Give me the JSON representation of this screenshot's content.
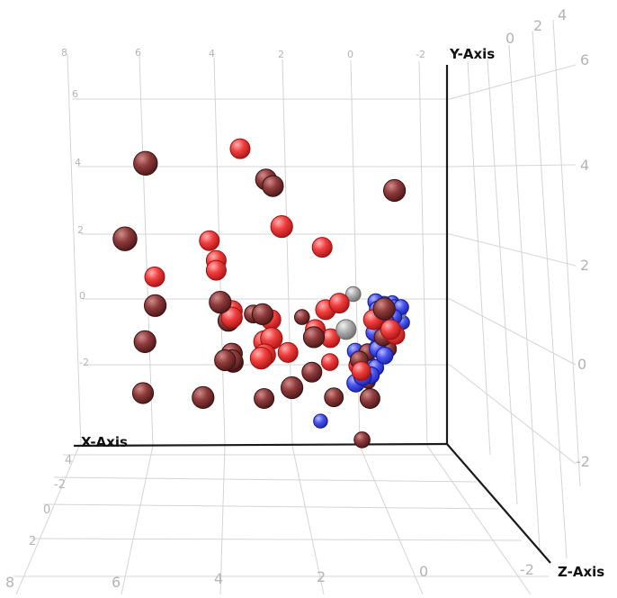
{
  "chart_data": {
    "type": "scatter",
    "projection": "3d",
    "axis_titles": {
      "x": "X-Axis",
      "y": "Y-Axis",
      "z": "Z-Axis"
    },
    "ticks": {
      "x_back": [
        "8",
        "6",
        "4",
        "2",
        "0",
        "-2"
      ],
      "x_front": [
        "8",
        "6",
        "4",
        "2",
        "0",
        "-2"
      ],
      "y_left": [
        "6",
        "4",
        "2",
        "0",
        "-2"
      ],
      "y_right": [
        "6",
        "4",
        "2",
        "0",
        "-2"
      ],
      "z_side": [
        "4",
        "2",
        "0",
        "-2"
      ],
      "z_top": [
        "4",
        "2",
        "0"
      ]
    },
    "colors": {
      "brown": "#8f3b3b",
      "red": "#f03e3e",
      "blue": "#4a55f0",
      "gray": "#b0b0b0"
    },
    "series": [
      {
        "color": "brown",
        "points": [
          [
            6.9,
            3.5,
            2.0
          ],
          [
            7.5,
            1.2,
            2.0
          ],
          [
            2.9,
            3.5,
            0.5
          ],
          [
            2.7,
            3.3,
            0.5
          ],
          [
            6.3,
            -0.5,
            1.0
          ],
          [
            6.6,
            -1.6,
            1.0
          ],
          [
            4.4,
            -0.4,
            1.0
          ],
          [
            4.0,
            -0.8,
            0.5
          ],
          [
            2.8,
            -0.1,
            -1.0
          ],
          [
            3.0,
            -0.6,
            0.5
          ],
          [
            1.5,
            -1.3,
            0.5
          ],
          [
            3.9,
            -1.8,
            0.5
          ],
          [
            3.7,
            -1.9,
            0.0
          ],
          [
            3.9,
            -2.0,
            0.5
          ],
          [
            4.1,
            -2.0,
            0.5
          ],
          [
            1.4,
            -2.2,
            0.0
          ],
          [
            -0.7,
            3.0,
            1.0
          ],
          [
            -0.3,
            -1.5,
            -1.0
          ],
          [
            -0.4,
            -0.6,
            1.0
          ],
          [
            -0.7,
            -1.1,
            -1.5
          ],
          [
            -1.0,
            -0.8,
            -1.0
          ],
          [
            -1.3,
            -1.0,
            -1.5
          ],
          [
            0.9,
            0.3,
            -2.5
          ],
          [
            -0.3,
            -3.0,
            0.0
          ],
          [
            -1.2,
            -1.5,
            -3.0
          ],
          [
            6.5,
            -3.0,
            0.5
          ],
          [
            4.9,
            -3.3,
            1.0
          ],
          [
            2.3,
            -3.0,
            1.0
          ],
          [
            0.6,
            -2.8,
            -0.5
          ],
          [
            2.8,
            -3.0,
            0.0
          ],
          [
            -0.7,
            -3.6,
            -2.0
          ]
        ]
      },
      {
        "color": "red",
        "points": [
          [
            3.5,
            4.6,
            0.0
          ],
          [
            4.4,
            1.8,
            0.0
          ],
          [
            2.6,
            1.9,
            1.0
          ],
          [
            4.2,
            1.2,
            0.0
          ],
          [
            4.2,
            0.9,
            0.0
          ],
          [
            1.1,
            1.6,
            0.0
          ],
          [
            6.0,
            0.7,
            0.0
          ],
          [
            3.9,
            -0.5,
            0.5
          ],
          [
            3.9,
            -0.7,
            0.5
          ],
          [
            2.6,
            -0.6,
            0.0
          ],
          [
            1.0,
            -0.3,
            0.0
          ],
          [
            0.6,
            -0.1,
            0.0
          ],
          [
            1.3,
            -0.9,
            0.0
          ],
          [
            0.7,
            -1.0,
            -0.5
          ],
          [
            0.4,
            -1.4,
            -1.5
          ],
          [
            -0.4,
            -0.6,
            0.0
          ],
          [
            -0.9,
            -0.9,
            0.0
          ],
          [
            -0.4,
            -1.5,
            -1.5
          ],
          [
            -1.2,
            -0.9,
            -0.5
          ],
          [
            -1.5,
            0.0,
            -2.5
          ],
          [
            3.1,
            -1.6,
            1.0
          ],
          [
            2.9,
            -1.5,
            1.0
          ],
          [
            3.1,
            -2.0,
            1.0
          ],
          [
            3.2,
            -2.1,
            1.0
          ],
          [
            2.1,
            -1.6,
            0.0
          ],
          [
            -0.2,
            -2.0,
            -0.5
          ]
        ]
      },
      {
        "color": "blue",
        "points": [
          [
            0.2,
            -2.7,
            -3.0
          ],
          [
            -0.2,
            -2.2,
            -1.0
          ],
          [
            -0.4,
            -2.0,
            -1.0
          ],
          [
            -0.8,
            -1.8,
            -1.5
          ],
          [
            -0.5,
            -0.9,
            -2.0
          ],
          [
            -0.9,
            -1.3,
            -2.0
          ],
          [
            -1.1,
            -1.4,
            -2.0
          ],
          [
            -1.0,
            -1.0,
            -1.5
          ],
          [
            -1.2,
            -1.2,
            -1.5
          ],
          [
            -1.4,
            -0.5,
            -2.0
          ],
          [
            -1.4,
            -0.2,
            -2.0
          ],
          [
            -1.0,
            -0.1,
            -1.5
          ],
          [
            -1.0,
            0.2,
            -1.5
          ],
          [
            -1.1,
            0.6,
            -2.0
          ],
          [
            -1.5,
            0.7,
            -2.5
          ],
          [
            -1.6,
            0.4,
            -2.5
          ],
          [
            -1.4,
            0.0,
            -2.0
          ],
          [
            -1.3,
            -0.6,
            -2.5
          ],
          [
            -1.8,
            0.6,
            -2.5
          ],
          [
            -2.0,
            0.6,
            -2.5
          ],
          [
            -1.8,
            0.3,
            -2.5
          ],
          [
            -1.8,
            -0.1,
            -3.0
          ],
          [
            -2.2,
            0.3,
            -3.0
          ],
          [
            -1.9,
            0.9,
            -3.0
          ],
          [
            -1.3,
            0.2,
            -2.5
          ],
          [
            -1.6,
            -0.1,
            -2.5
          ],
          [
            -1.2,
            -0.2,
            -2.0
          ],
          [
            -1.6,
            0.0,
            -3.0
          ],
          [
            -1.9,
            0.7,
            -3.0
          ],
          [
            -0.9,
            -0.5,
            -1.5
          ],
          [
            -1.5,
            -0.5,
            -2.5
          ]
        ]
      },
      {
        "color": "gray",
        "points": [
          [
            -0.6,
            1.0,
            -2.5
          ],
          [
            0.4,
            -0.9,
            0.0
          ],
          [
            -2.1,
            0.6,
            -3.0
          ],
          [
            -1.9,
            0.3,
            -3.0
          ]
        ]
      }
    ]
  }
}
